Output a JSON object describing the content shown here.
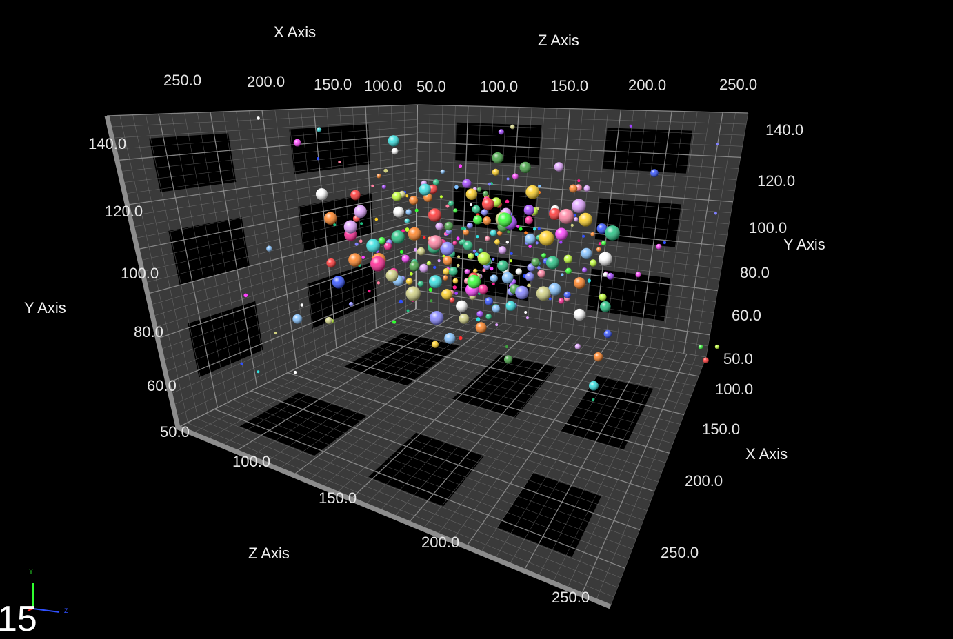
{
  "chart_data": {
    "type": "scatter",
    "title": "",
    "axes": {
      "x": {
        "label": "X Axis",
        "range": [
          50,
          250
        ],
        "ticks": [
          "250.0",
          "200.0",
          "150.0",
          "100.0",
          "50.0"
        ],
        "ticks_right": [
          "100.0",
          "150.0",
          "200.0",
          "250.0"
        ]
      },
      "y": {
        "label": "Y Axis",
        "range": [
          50,
          140
        ],
        "ticks": [
          "140.0",
          "120.0",
          "100.0",
          "80.0",
          "60.0",
          "50.0"
        ]
      },
      "z": {
        "label": "Z Axis",
        "range": [
          50,
          250
        ],
        "ticks_top": [
          "100.0",
          "150.0",
          "200.0",
          "250.0"
        ],
        "ticks_bottom": [
          "100.0",
          "150.0",
          "200.0",
          "250.0"
        ]
      }
    },
    "grid": true,
    "background": "#000000",
    "wall_color": "#3a3a3a",
    "grid_color": "#8a8a8a",
    "palette": [
      "#ff3030",
      "#30ff30",
      "#3050ff",
      "#ffd020",
      "#ff40ff",
      "#30e0e0",
      "#ff8020",
      "#c0ff30",
      "#a040ff",
      "#ffffff",
      "#ff80a0",
      "#80c0ff",
      "#40a040",
      "#d0d080",
      "#ff2090",
      "#8080ff",
      "#e0a0ff",
      "#20c080"
    ],
    "point_count": 360,
    "points_note": "dense cloud of colored spheres centered near x=150, y=95, z=150"
  },
  "labels": {
    "x_top": "X Axis",
    "z_top": "Z Axis",
    "y_left": "Y Axis",
    "y_right": "Y Axis",
    "x_right": "X Axis",
    "z_bottom": "Z Axis",
    "counter": "15"
  },
  "gizmo": {
    "y": "Y",
    "z": "Z",
    "y_color": "#30ff30",
    "z_color": "#3050ff"
  }
}
